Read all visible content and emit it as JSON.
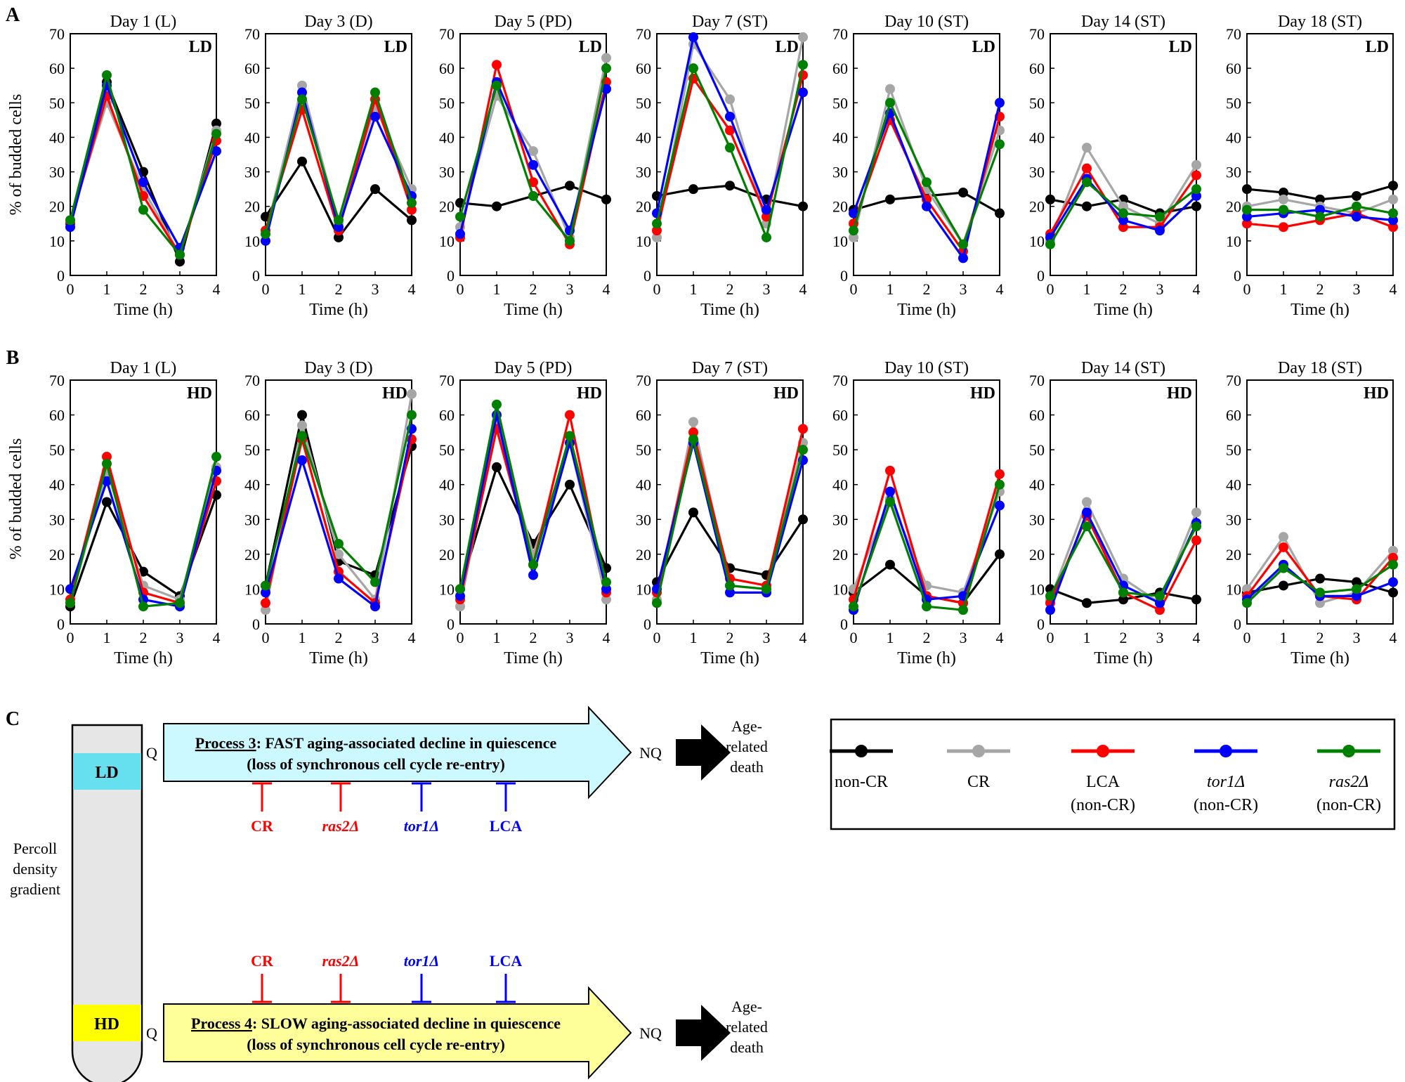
{
  "labels": {
    "panel_a": "A",
    "panel_b": "B",
    "panel_c": "C",
    "ylabel": "% of budded cells",
    "xlabel": "Time (h)"
  },
  "colors": {
    "non-CR": "#000000",
    "CR": "#a6a6a6",
    "LCA": "#ff0000",
    "tor1": "#0000ff",
    "ras2": "#008000",
    "ld_band": "#66e0ee",
    "hd_band": "#ffff00",
    "tube": "#e6e6e6",
    "arrow_ld": "#ccf9ff",
    "arrow_hd": "#ffff99"
  },
  "legend": [
    {
      "key": "non-CR",
      "line1": "non-CR",
      "line2": "",
      "italic": false
    },
    {
      "key": "CR",
      "line1": "CR",
      "line2": "",
      "italic": false
    },
    {
      "key": "LCA",
      "line1": "LCA",
      "line2": "(non-CR)",
      "italic": false
    },
    {
      "key": "tor1",
      "line1": "tor1Δ",
      "line2": "(non-CR)",
      "italic": true
    },
    {
      "key": "ras2",
      "line1": "ras2Δ",
      "line2": "(non-CR)",
      "italic": true
    }
  ],
  "chart_data": [
    {
      "panel": "A",
      "title": "Day 1 (L)",
      "tag": "LD",
      "type": "line",
      "x": [
        0,
        1,
        2,
        3,
        4
      ],
      "ylim": [
        0,
        70
      ],
      "series": [
        {
          "name": "non-CR",
          "values": [
            15,
            56,
            30,
            4,
            44
          ]
        },
        {
          "name": "CR",
          "values": [
            16,
            50,
            25,
            6,
            42
          ]
        },
        {
          "name": "LCA",
          "values": [
            15,
            52,
            23,
            6,
            39
          ]
        },
        {
          "name": "tor1",
          "values": [
            14,
            55,
            27,
            8,
            36
          ]
        },
        {
          "name": "ras2",
          "values": [
            16,
            58,
            19,
            6,
            41
          ]
        }
      ]
    },
    {
      "panel": "A",
      "title": "Day 3 (D)",
      "tag": "LD",
      "type": "line",
      "x": [
        0,
        1,
        2,
        3,
        4
      ],
      "ylim": [
        0,
        70
      ],
      "series": [
        {
          "name": "non-CR",
          "values": [
            17,
            33,
            11,
            25,
            16
          ]
        },
        {
          "name": "CR",
          "values": [
            12,
            55,
            15,
            49,
            25
          ]
        },
        {
          "name": "LCA",
          "values": [
            13,
            48,
            13,
            51,
            19
          ]
        },
        {
          "name": "tor1",
          "values": [
            10,
            53,
            14,
            46,
            23
          ]
        },
        {
          "name": "ras2",
          "values": [
            12,
            51,
            16,
            53,
            21
          ]
        }
      ]
    },
    {
      "panel": "A",
      "title": "Day 5 (PD)",
      "tag": "LD",
      "type": "line",
      "x": [
        0,
        1,
        2,
        3,
        4
      ],
      "ylim": [
        0,
        70
      ],
      "series": [
        {
          "name": "non-CR",
          "values": [
            21,
            20,
            23,
            26,
            22
          ]
        },
        {
          "name": "CR",
          "values": [
            14,
            52,
            36,
            11,
            63
          ]
        },
        {
          "name": "LCA",
          "values": [
            11,
            61,
            27,
            9,
            56
          ]
        },
        {
          "name": "tor1",
          "values": [
            12,
            56,
            32,
            13,
            54
          ]
        },
        {
          "name": "ras2",
          "values": [
            17,
            55,
            23,
            10,
            60
          ]
        }
      ]
    },
    {
      "panel": "A",
      "title": "Day 7 (ST)",
      "tag": "LD",
      "type": "line",
      "x": [
        0,
        1,
        2,
        3,
        4
      ],
      "ylim": [
        0,
        70
      ],
      "series": [
        {
          "name": "non-CR",
          "values": [
            23,
            25,
            26,
            22,
            20
          ]
        },
        {
          "name": "CR",
          "values": [
            11,
            67,
            51,
            15,
            69
          ]
        },
        {
          "name": "LCA",
          "values": [
            13,
            57,
            42,
            17,
            58
          ]
        },
        {
          "name": "tor1",
          "values": [
            18,
            69,
            46,
            19,
            53
          ]
        },
        {
          "name": "ras2",
          "values": [
            15,
            60,
            37,
            11,
            61
          ]
        }
      ]
    },
    {
      "panel": "A",
      "title": "Day 10 (ST)",
      "tag": "LD",
      "type": "line",
      "x": [
        0,
        1,
        2,
        3,
        4
      ],
      "ylim": [
        0,
        70
      ],
      "series": [
        {
          "name": "non-CR",
          "values": [
            19,
            22,
            23,
            24,
            18
          ]
        },
        {
          "name": "CR",
          "values": [
            11,
            54,
            25,
            9,
            42
          ]
        },
        {
          "name": "LCA",
          "values": [
            15,
            45,
            22,
            7,
            46
          ]
        },
        {
          "name": "tor1",
          "values": [
            18,
            47,
            20,
            5,
            50
          ]
        },
        {
          "name": "ras2",
          "values": [
            13,
            50,
            27,
            9,
            38
          ]
        }
      ]
    },
    {
      "panel": "A",
      "title": "Day 14 (ST)",
      "tag": "LD",
      "type": "line",
      "x": [
        0,
        1,
        2,
        3,
        4
      ],
      "ylim": [
        0,
        70
      ],
      "series": [
        {
          "name": "non-CR",
          "values": [
            22,
            20,
            22,
            18,
            20
          ]
        },
        {
          "name": "CR",
          "values": [
            10,
            37,
            20,
            15,
            32
          ]
        },
        {
          "name": "LCA",
          "values": [
            12,
            31,
            14,
            14,
            29
          ]
        },
        {
          "name": "tor1",
          "values": [
            11,
            28,
            16,
            13,
            23
          ]
        },
        {
          "name": "ras2",
          "values": [
            9,
            27,
            18,
            17,
            25
          ]
        }
      ]
    },
    {
      "panel": "A",
      "title": "Day 18 (ST)",
      "tag": "LD",
      "type": "line",
      "x": [
        0,
        1,
        2,
        3,
        4
      ],
      "ylim": [
        0,
        70
      ],
      "series": [
        {
          "name": "non-CR",
          "values": [
            25,
            24,
            22,
            23,
            26
          ]
        },
        {
          "name": "CR",
          "values": [
            20,
            22,
            20,
            18,
            22
          ]
        },
        {
          "name": "LCA",
          "values": [
            15,
            14,
            16,
            18,
            14
          ]
        },
        {
          "name": "tor1",
          "values": [
            17,
            18,
            19,
            17,
            16
          ]
        },
        {
          "name": "ras2",
          "values": [
            19,
            19,
            17,
            20,
            18
          ]
        }
      ]
    },
    {
      "panel": "B",
      "title": "Day 1 (L)",
      "tag": "HD",
      "type": "line",
      "x": [
        0,
        1,
        2,
        3,
        4
      ],
      "ylim": [
        0,
        70
      ],
      "series": [
        {
          "name": "non-CR",
          "values": [
            5,
            35,
            15,
            8,
            37
          ]
        },
        {
          "name": "CR",
          "values": [
            6,
            44,
            11,
            7,
            45
          ]
        },
        {
          "name": "LCA",
          "values": [
            7,
            48,
            9,
            6,
            41
          ]
        },
        {
          "name": "tor1",
          "values": [
            10,
            41,
            7,
            5,
            44
          ]
        },
        {
          "name": "ras2",
          "values": [
            6,
            46,
            5,
            6,
            48
          ]
        }
      ]
    },
    {
      "panel": "B",
      "title": "Day 3 (D)",
      "tag": "HD",
      "type": "line",
      "x": [
        0,
        1,
        2,
        3,
        4
      ],
      "ylim": [
        0,
        70
      ],
      "series": [
        {
          "name": "non-CR",
          "values": [
            11,
            60,
            18,
            14,
            51
          ]
        },
        {
          "name": "CR",
          "values": [
            4,
            57,
            20,
            7,
            66
          ]
        },
        {
          "name": "LCA",
          "values": [
            6,
            53,
            15,
            6,
            53
          ]
        },
        {
          "name": "tor1",
          "values": [
            9,
            47,
            13,
            5,
            56
          ]
        },
        {
          "name": "ras2",
          "values": [
            11,
            54,
            23,
            12,
            60
          ]
        }
      ]
    },
    {
      "panel": "B",
      "title": "Day 5 (PD)",
      "tag": "HD",
      "type": "line",
      "x": [
        0,
        1,
        2,
        3,
        4
      ],
      "ylim": [
        0,
        70
      ],
      "series": [
        {
          "name": "non-CR",
          "values": [
            10,
            45,
            23,
            40,
            16
          ]
        },
        {
          "name": "CR",
          "values": [
            5,
            58,
            20,
            52,
            7
          ]
        },
        {
          "name": "LCA",
          "values": [
            7,
            56,
            17,
            60,
            9
          ]
        },
        {
          "name": "tor1",
          "values": [
            8,
            60,
            14,
            52,
            10
          ]
        },
        {
          "name": "ras2",
          "values": [
            10,
            63,
            17,
            54,
            12
          ]
        }
      ]
    },
    {
      "panel": "B",
      "title": "Day 7 (ST)",
      "tag": "HD",
      "type": "line",
      "x": [
        0,
        1,
        2,
        3,
        4
      ],
      "ylim": [
        0,
        70
      ],
      "series": [
        {
          "name": "non-CR",
          "values": [
            12,
            32,
            16,
            14,
            30
          ]
        },
        {
          "name": "CR",
          "values": [
            7,
            58,
            11,
            10,
            52
          ]
        },
        {
          "name": "LCA",
          "values": [
            9,
            55,
            13,
            11,
            56
          ]
        },
        {
          "name": "tor1",
          "values": [
            10,
            52,
            9,
            9,
            47
          ]
        },
        {
          "name": "ras2",
          "values": [
            6,
            53,
            11,
            10,
            50
          ]
        }
      ]
    },
    {
      "panel": "B",
      "title": "Day 10 (ST)",
      "tag": "HD",
      "type": "line",
      "x": [
        0,
        1,
        2,
        3,
        4
      ],
      "ylim": [
        0,
        70
      ],
      "series": [
        {
          "name": "non-CR",
          "values": [
            9,
            17,
            8,
            6,
            20
          ]
        },
        {
          "name": "CR",
          "values": [
            10,
            36,
            11,
            9,
            38
          ]
        },
        {
          "name": "LCA",
          "values": [
            7,
            44,
            8,
            6,
            43
          ]
        },
        {
          "name": "tor1",
          "values": [
            4,
            38,
            7,
            8,
            34
          ]
        },
        {
          "name": "ras2",
          "values": [
            5,
            35,
            5,
            4,
            40
          ]
        }
      ]
    },
    {
      "panel": "B",
      "title": "Day 14 (ST)",
      "tag": "HD",
      "type": "line",
      "x": [
        0,
        1,
        2,
        3,
        4
      ],
      "ylim": [
        0,
        70
      ],
      "series": [
        {
          "name": "non-CR",
          "values": [
            10,
            6,
            7,
            9,
            7
          ]
        },
        {
          "name": "CR",
          "values": [
            7,
            35,
            13,
            6,
            32
          ]
        },
        {
          "name": "LCA",
          "values": [
            6,
            31,
            9,
            4,
            24
          ]
        },
        {
          "name": "tor1",
          "values": [
            4,
            32,
            11,
            6,
            29
          ]
        },
        {
          "name": "ras2",
          "values": [
            8,
            28,
            9,
            8,
            28
          ]
        }
      ]
    },
    {
      "panel": "B",
      "title": "Day 18 (ST)",
      "tag": "HD",
      "type": "line",
      "x": [
        0,
        1,
        2,
        3,
        4
      ],
      "ylim": [
        0,
        70
      ],
      "series": [
        {
          "name": "non-CR",
          "values": [
            9,
            11,
            13,
            12,
            9
          ]
        },
        {
          "name": "CR",
          "values": [
            10,
            25,
            6,
            9,
            21
          ]
        },
        {
          "name": "LCA",
          "values": [
            8,
            22,
            8,
            7,
            19
          ]
        },
        {
          "name": "tor1",
          "values": [
            7,
            17,
            8,
            8,
            12
          ]
        },
        {
          "name": "ras2",
          "values": [
            6,
            16,
            9,
            10,
            17
          ]
        }
      ]
    }
  ],
  "scheme": {
    "tube_ld": "LD",
    "tube_hd": "HD",
    "gradient_label": [
      "Percoll",
      "density",
      "gradient"
    ],
    "q": "Q",
    "nq": "NQ",
    "death": [
      "Age-",
      "related",
      "death"
    ],
    "process3_head": "Process 3",
    "process3_rest": ": FAST aging-associated decline in quiescence",
    "process3_sub": "(loss of synchronous cell cycle re-entry)",
    "process4_head": "Process 4",
    "process4_rest": ": SLOW aging-associated decline in quiescence",
    "process4_sub": "(loss of synchronous cell cycle re-entry)",
    "inhibitors": [
      {
        "label": "CR",
        "color": "#ff0000",
        "italic": false
      },
      {
        "label": "ras2Δ",
        "color": "#ff0000",
        "italic": true
      },
      {
        "label": "tor1Δ",
        "color": "#0000ff",
        "italic": true
      },
      {
        "label": "LCA",
        "color": "#0000ff",
        "italic": false
      }
    ]
  }
}
